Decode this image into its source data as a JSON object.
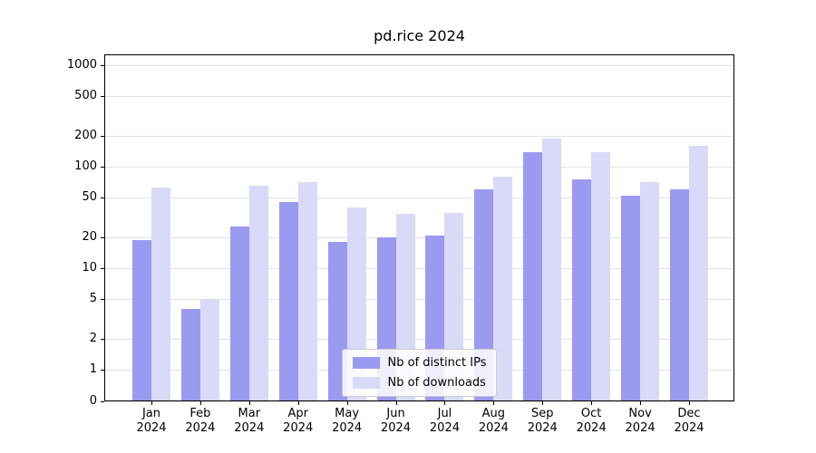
{
  "chart_data": {
    "type": "bar",
    "title": "pd.rice 2024",
    "xlabel": "",
    "ylabel": "",
    "scale": "symlog",
    "grid": true,
    "legend_position": "lower center",
    "yticks": [
      0,
      1,
      2,
      5,
      10,
      20,
      50,
      100,
      200,
      500,
      1000
    ],
    "ylim": [
      0,
      1300
    ],
    "categories": [
      "Jan 2024",
      "Feb 2024",
      "Mar 2024",
      "Apr 2024",
      "May 2024",
      "Jun 2024",
      "Jul 2024",
      "Aug 2024",
      "Sep 2024",
      "Oct 2024",
      "Nov 2024",
      "Dec 2024"
    ],
    "series": [
      {
        "name": "Nb of distinct IPs",
        "color": "#9a9af0",
        "values": [
          19,
          4,
          26,
          45,
          18,
          20,
          21,
          60,
          140,
          75,
          52,
          60
        ]
      },
      {
        "name": "Nb of downloads",
        "color": "#d9d9f8",
        "values": [
          62,
          5,
          65,
          70,
          40,
          34,
          35,
          80,
          190,
          140,
          70,
          160
        ]
      }
    ]
  }
}
